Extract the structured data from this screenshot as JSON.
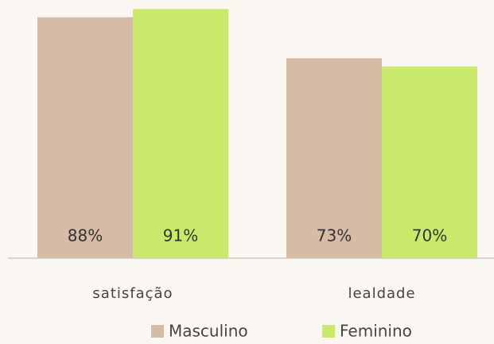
{
  "chart_data": {
    "type": "bar",
    "categories": [
      "satisfação",
      "lealdade"
    ],
    "series": [
      {
        "name": "Masculino",
        "color": "#d6bca5",
        "values": [
          88,
          73
        ],
        "value_labels": [
          "88%",
          "73%"
        ]
      },
      {
        "name": "Feminino",
        "color": "#c8e96a",
        "values": [
          91,
          70
        ],
        "value_labels": [
          "91%",
          "70%"
        ]
      }
    ],
    "ylim": [
      0,
      94
    ],
    "legend": "bottom"
  }
}
